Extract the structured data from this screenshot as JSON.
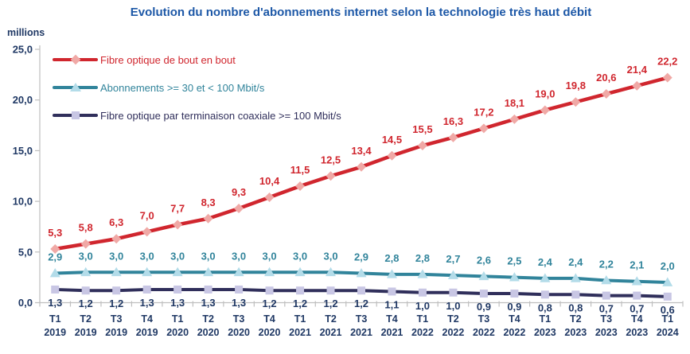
{
  "chart_data": {
    "type": "line",
    "title": "Evolution du nombre d'abonnements internet selon la technologie très haut débit",
    "xlabel": "",
    "ylabel": "millions",
    "ylim": [
      0,
      25
    ],
    "grid": false,
    "legend_position": "inside-top-left",
    "axis_color": "#BFBFBF",
    "text_color": "#1F3864",
    "title_color": "#1D58A7",
    "yticks": [
      {
        "value": 0,
        "label": "0,0"
      },
      {
        "value": 5,
        "label": "5,0"
      },
      {
        "value": 10,
        "label": "10,0"
      },
      {
        "value": 15,
        "label": "15,0"
      },
      {
        "value": 20,
        "label": "20,0"
      },
      {
        "value": 25,
        "label": "25,0"
      }
    ],
    "categories": [
      {
        "quarter": "T1",
        "year": "2019"
      },
      {
        "quarter": "T2",
        "year": "2019"
      },
      {
        "quarter": "T3",
        "year": "2019"
      },
      {
        "quarter": "T4",
        "year": "2019"
      },
      {
        "quarter": "T1",
        "year": "2020"
      },
      {
        "quarter": "T2",
        "year": "2020"
      },
      {
        "quarter": "T3",
        "year": "2020"
      },
      {
        "quarter": "T4",
        "year": "2020"
      },
      {
        "quarter": "T1",
        "year": "2021"
      },
      {
        "quarter": "T2",
        "year": "2021"
      },
      {
        "quarter": "T3",
        "year": "2021"
      },
      {
        "quarter": "T4",
        "year": "2021"
      },
      {
        "quarter": "T1",
        "year": "2022"
      },
      {
        "quarter": "T2",
        "year": "2022"
      },
      {
        "quarter": "T3",
        "year": "2022"
      },
      {
        "quarter": "T4",
        "year": "2022"
      },
      {
        "quarter": "T1",
        "year": "2023"
      },
      {
        "quarter": "T2",
        "year": "2023"
      },
      {
        "quarter": "T3",
        "year": "2023"
      },
      {
        "quarter": "T4",
        "year": "2023"
      },
      {
        "quarter": "T1",
        "year": "2024"
      }
    ],
    "series": [
      {
        "name": "Fibre optique de bout en bout",
        "color": "#D0262E",
        "marker": "diamond",
        "marker_fill": "#F0A9A6",
        "label_color": "#D0262E",
        "label_dy": -16,
        "line_width": 4.5,
        "values": [
          5.3,
          5.8,
          6.3,
          7.0,
          7.7,
          8.3,
          9.3,
          10.4,
          11.5,
          12.5,
          13.4,
          14.5,
          15.5,
          16.3,
          17.2,
          18.1,
          19.0,
          19.8,
          20.6,
          21.4,
          22.2
        ],
        "labels": [
          "5,3",
          "5,8",
          "6,3",
          "7,0",
          "7,7",
          "8,3",
          "9,3",
          "10,4",
          "11,5",
          "12,5",
          "13,4",
          "14,5",
          "15,5",
          "16,3",
          "17,2",
          "18,1",
          "19,0",
          "19,8",
          "20,6",
          "21,4",
          "22,2"
        ]
      },
      {
        "name": "Abonnements >= 30 et < 100 Mbit/s",
        "color": "#31849B",
        "marker": "triangle",
        "marker_fill": "#B3DCE9",
        "label_color": "#31849B",
        "label_dy": -16,
        "line_width": 4,
        "values": [
          2.9,
          3.0,
          3.0,
          3.0,
          3.0,
          3.0,
          3.0,
          3.0,
          3.0,
          3.0,
          2.9,
          2.8,
          2.8,
          2.7,
          2.6,
          2.5,
          2.4,
          2.4,
          2.2,
          2.1,
          2.0
        ],
        "labels": [
          "2,9",
          "3,0",
          "3,0",
          "3,0",
          "3,0",
          "3,0",
          "3,0",
          "3,0",
          "3,0",
          "3,0",
          "2,9",
          "2,8",
          "2,8",
          "2,7",
          "2,6",
          "2,5",
          "2,4",
          "2,4",
          "2,2",
          "2,1",
          "2,0"
        ]
      },
      {
        "name": "Fibre optique par terminaison coaxiale >= 100 Mbit/s",
        "color": "#302F5B",
        "marker": "square",
        "marker_fill": "#C8C6E4",
        "label_color": "#203864",
        "label_dy": 21,
        "line_width": 4,
        "values": [
          1.3,
          1.2,
          1.2,
          1.3,
          1.3,
          1.3,
          1.3,
          1.2,
          1.2,
          1.2,
          1.2,
          1.1,
          1.0,
          1.0,
          0.9,
          0.9,
          0.8,
          0.8,
          0.7,
          0.7,
          0.6
        ],
        "labels": [
          "1,3",
          "1,2",
          "1,2",
          "1,3",
          "1,3",
          "1,3",
          "1,3",
          "1,2",
          "1,2",
          "1,2",
          "1,2",
          "1,1",
          "1,0",
          "1,0",
          "0,9",
          "0,9",
          "0,8",
          "0,8",
          "0,7",
          "0,7",
          "0,6"
        ]
      }
    ]
  }
}
